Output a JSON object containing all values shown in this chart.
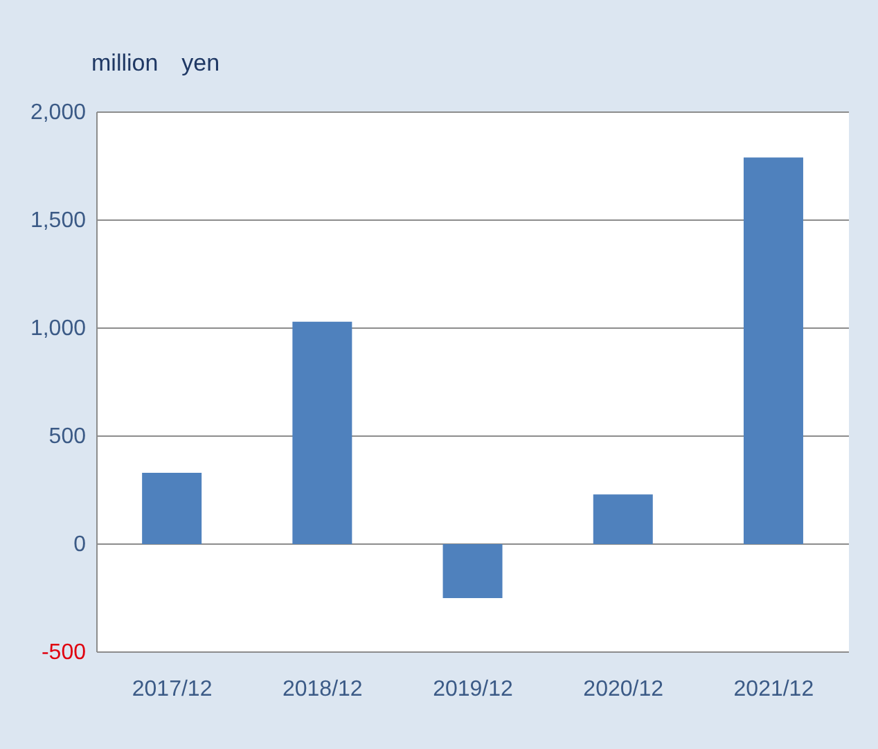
{
  "chart_data": {
    "type": "bar",
    "ylabel": "million　yen",
    "categories": [
      "2017/12",
      "2018/12",
      "2019/12",
      "2020/12",
      "2021/12"
    ],
    "values": [
      330,
      1030,
      -250,
      230,
      1790
    ],
    "color": "#4f81bd",
    "ylim": [
      -500,
      2000
    ],
    "yticks": [
      -500,
      0,
      500,
      {
        "value": 1000,
        "label": "1,000"
      },
      {
        "value": 1500,
        "label": "1,500"
      },
      {
        "value": 2000,
        "label": "2,000"
      }
    ],
    "grid": "y",
    "legend": false
  }
}
